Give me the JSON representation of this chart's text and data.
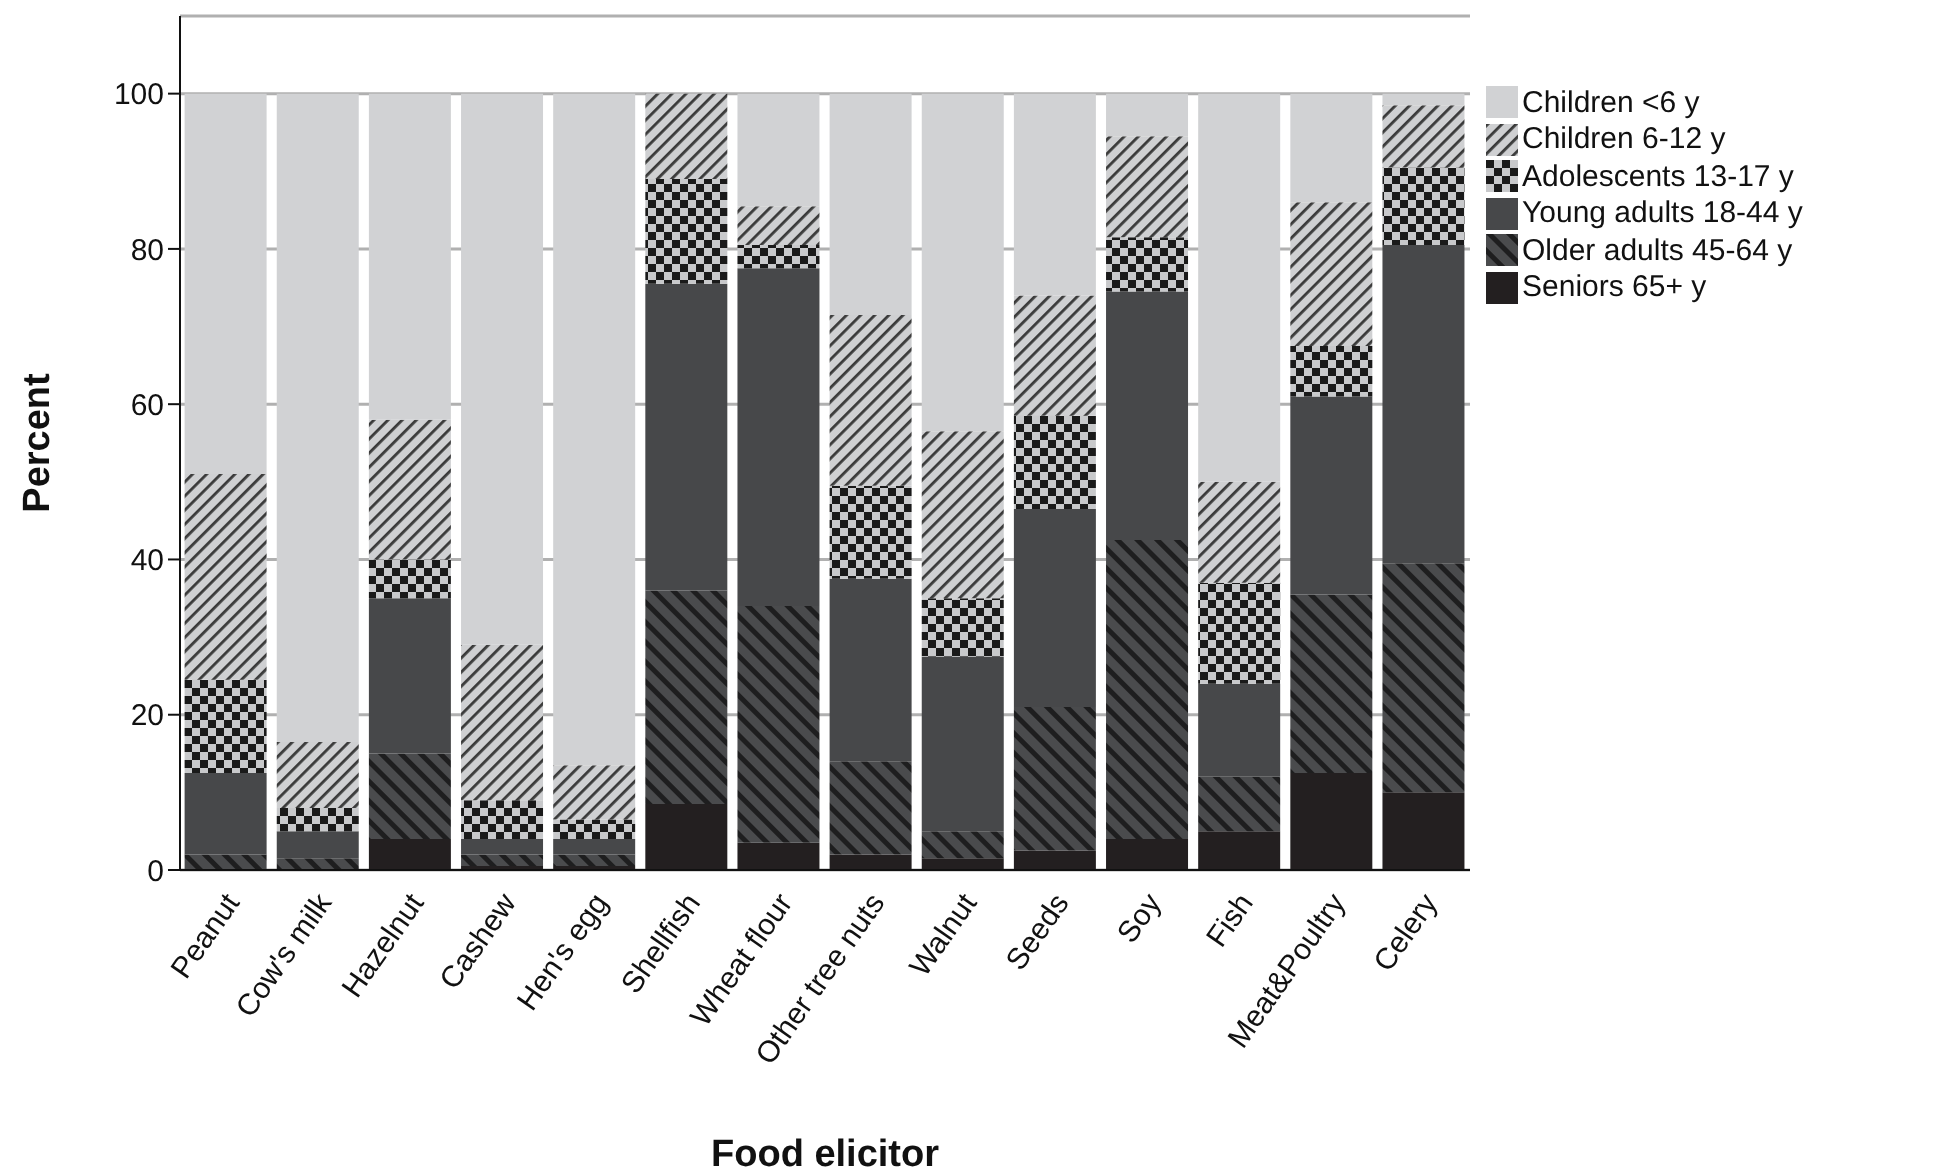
{
  "chart_data": {
    "type": "bar",
    "stacked": true,
    "xlabel": "Food elicitor",
    "ylabel": "Percent",
    "categories": [
      "Peanut",
      "Cow's milk",
      "Hazelnut",
      "Cashew",
      "Hen's egg",
      "Shellfish",
      "Wheat flour",
      "Other tree nuts",
      "Walnut",
      "Seeds",
      "Soy",
      "Fish",
      "Meat&Poultry",
      "Celery"
    ],
    "series": [
      {
        "name": "Seniors 65+ y",
        "color": "#231f20",
        "values": [
          0,
          0,
          4,
          0.5,
          0.5,
          8.5,
          3.5,
          2,
          1.5,
          2.5,
          4,
          5,
          12.5,
          10
        ]
      },
      {
        "name": "Older adults 45-64 y",
        "color": "#4a4b4d",
        "values": [
          2,
          1.5,
          11,
          1.5,
          1.5,
          27.5,
          30.5,
          12,
          3.5,
          18.5,
          38.5,
          7,
          23,
          29.5
        ]
      },
      {
        "name": "Young adults 18-44 y",
        "color": "#47484a",
        "values": [
          10.5,
          3.5,
          20,
          2,
          2,
          39.5,
          43.5,
          23.5,
          22.5,
          25.5,
          32,
          12,
          25.5,
          41
        ]
      },
      {
        "name": "Adolescents 13-17 y",
        "color": "#1a1a1a",
        "values": [
          12,
          3,
          5,
          5,
          2.5,
          13.5,
          3,
          12,
          7.5,
          12,
          7,
          13,
          6.5,
          10
        ]
      },
      {
        "name": "Children 6-12 y",
        "color": "#cfd0d2",
        "values": [
          26.5,
          8.5,
          18,
          20,
          7,
          11,
          5,
          22,
          21.5,
          15.5,
          13,
          13,
          18.5,
          8
        ]
      },
      {
        "name": "Children <6 y",
        "color": "#d1d2d4",
        "values": [
          49,
          83.5,
          42,
          71,
          86.5,
          0,
          14.5,
          28.5,
          43.5,
          26,
          5.5,
          50,
          14,
          1.5
        ]
      }
    ],
    "ylim": [
      0,
      110
    ],
    "yticks": [
      0,
      20,
      40,
      60,
      80,
      100
    ],
    "grid": "y",
    "legend": "top right"
  }
}
